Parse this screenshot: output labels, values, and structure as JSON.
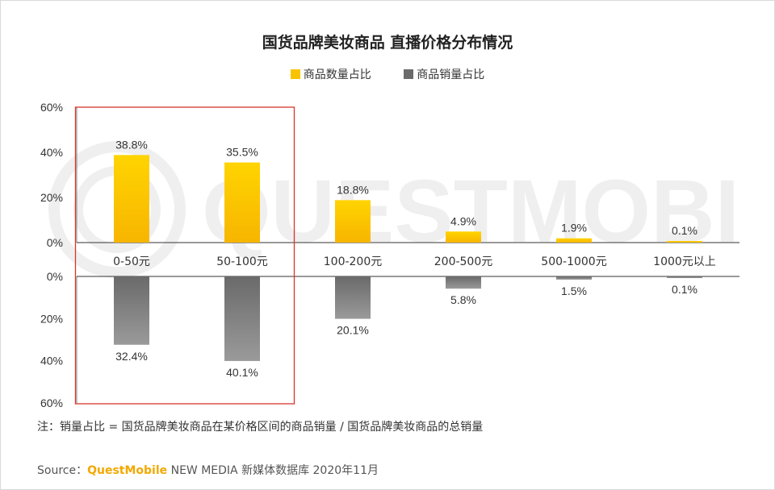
{
  "chart_data": {
    "type": "bar",
    "title": "国货品牌美妆商品 直播价格分布情况",
    "categories": [
      "0-50元",
      "50-100元",
      "100-200元",
      "200-500元",
      "500-1000元",
      "1000元以上"
    ],
    "series": [
      {
        "name": "商品数量占比",
        "values": [
          38.8,
          35.5,
          18.8,
          4.9,
          1.9,
          0.1
        ],
        "labels": [
          "38.8%",
          "35.5%",
          "18.8%",
          "4.9%",
          "1.9%",
          "0.1%"
        ],
        "color": "#f9c300"
      },
      {
        "name": "商品销量占比",
        "values": [
          32.4,
          40.1,
          20.1,
          5.8,
          1.5,
          0.1
        ],
        "labels": [
          "32.4%",
          "40.1%",
          "20.1%",
          "5.8%",
          "1.5%",
          "0.1%"
        ],
        "color": "#6b6b6b"
      }
    ],
    "y_ticks_top": [
      "60%",
      "40%",
      "20%",
      "0%"
    ],
    "y_ticks_bottom": [
      "0%",
      "20%",
      "40%",
      "60%"
    ],
    "ylim": [
      0,
      60
    ],
    "legend_position": "top-center",
    "highlight_categories": [
      "0-50元",
      "50-100元"
    ],
    "highlight_color": "#d9352b"
  },
  "footnote": "注：销量占比 = 国货品牌美妆商品在某价格区间的商品销量 / 国货品牌美妆商品的总销量",
  "source": {
    "prefix": "Source：",
    "brand": "QuestMobile",
    "suffix": " NEW MEDIA 新媒体数据库 2020年11月"
  },
  "watermark": "QUESTMOBILE"
}
